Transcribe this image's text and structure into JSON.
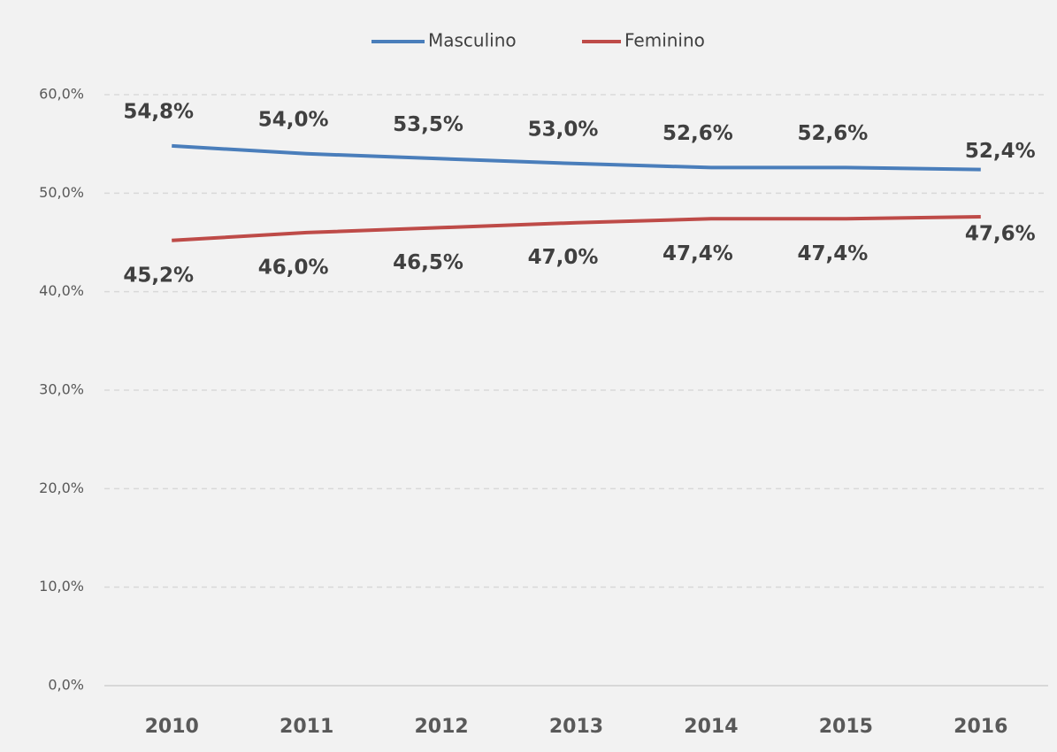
{
  "chart_data": {
    "type": "line",
    "categories": [
      "2010",
      "2011",
      "2012",
      "2013",
      "2014",
      "2015",
      "2016"
    ],
    "series": [
      {
        "name": "Masculino",
        "color": "#4a7ebb",
        "values": [
          54.8,
          54.0,
          53.5,
          53.0,
          52.6,
          52.6,
          52.4
        ],
        "value_labels": [
          "54,8%",
          "54,0%",
          "53,5%",
          "53,0%",
          "52,6%",
          "52,6%",
          "52,4%"
        ]
      },
      {
        "name": "Feminino",
        "color": "#be4b48",
        "values": [
          45.2,
          46.0,
          46.5,
          47.0,
          47.4,
          47.4,
          47.6
        ],
        "value_labels": [
          "45,2%",
          "46,0%",
          "46,5%",
          "47,0%",
          "47,4%",
          "47,4%",
          "47,6%"
        ]
      }
    ],
    "ylim": [
      0,
      60
    ],
    "yticks": [
      {
        "value": 0,
        "label": "0,0%"
      },
      {
        "value": 10,
        "label": "10,0%"
      },
      {
        "value": 20,
        "label": "20,0%"
      },
      {
        "value": 30,
        "label": "30,0%"
      },
      {
        "value": 40,
        "label": "40,0%"
      },
      {
        "value": 50,
        "label": "50,0%"
      },
      {
        "value": 60,
        "label": "60,0%"
      }
    ],
    "grid": true,
    "legend": "top"
  }
}
